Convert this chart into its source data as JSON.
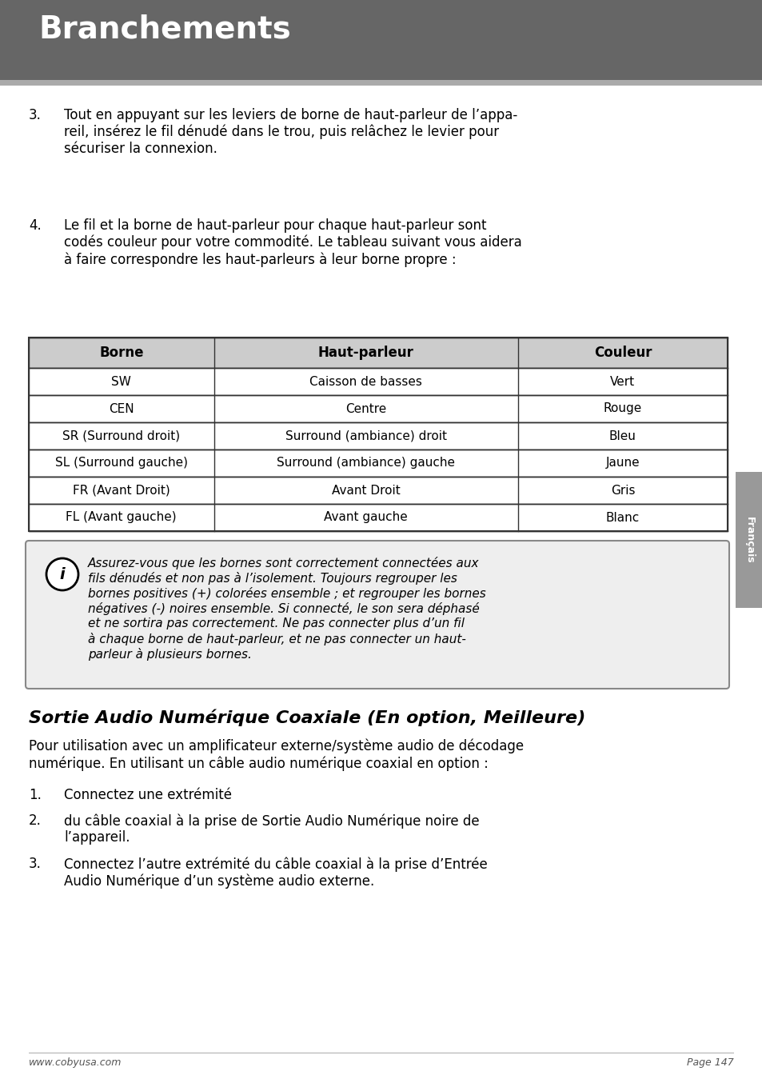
{
  "title": "Branchements",
  "title_bg": "#666666",
  "title_color": "#ffffff",
  "page_bg": "#ffffff",
  "sidebar_color": "#999999",
  "sidebar_text": "Français",
  "footer_left": "www.cobyusa.com",
  "footer_right": "Page 147",
  "para3_number": "3.",
  "para3_text": "Tout en appuyant sur les leviers de borne de haut-parleur de l’appa-\nreil, insérez le fil dénudé dans le trou, puis relâchez le levier pour\nsécuriser la connexion.",
  "para4_number": "4.",
  "para4_text": "Le fil et la borne de haut-parleur pour chaque haut-parleur sont\ncodés couleur pour votre commodité. Le tableau suivant vous aidera\nà faire correspondre les haut-parleurs à leur borne propre :",
  "table_headers": [
    "Borne",
    "Haut-parleur",
    "Couleur"
  ],
  "table_rows": [
    [
      "SW",
      "Caisson de basses",
      "Vert"
    ],
    [
      "CEN",
      "Centre",
      "Rouge"
    ],
    [
      "SR (Surround droit)",
      "Surround (ambiance) droit",
      "Bleu"
    ],
    [
      "SL (Surround gauche)",
      "Surround (ambiance) gauche",
      "Jaune"
    ],
    [
      "FR (Avant Droit)",
      "Avant Droit",
      "Gris"
    ],
    [
      "FL (Avant gauche)",
      "Avant gauche",
      "Blanc"
    ]
  ],
  "table_header_bg": "#cccccc",
  "table_border_color": "#333333",
  "info_box_text_lines": [
    "Assurez-vous que les bornes sont correctement connectées aux",
    "fils dénudés et non pas à l’isolement. Toujours regrouper les",
    "bornes positives (+) colorées ensemble ; et regrouper les bornes",
    "négatives (-) noires ensemble. Si connecté, le son sera déphasé",
    "et ne sortira pas correctement. Ne pas connecter plus d’un fil",
    "à chaque borne de haut-parleur, et ne pas connecter un haut-",
    "parleur à plusieurs bornes."
  ],
  "info_box_bg": "#eeeeee",
  "section_title": "Sortie Audio Numérique Coaxiale (En option, Meilleure)",
  "section_para_lines": [
    "Pour utilisation avec un amplificateur externe/système audio de décodage",
    "numérique. En utilisant un câble audio numérique coaxial en option :"
  ],
  "list_items": [
    [
      "1.",
      "Connectez une extrémité"
    ],
    [
      "2.",
      "du câble coaxial à la prise de Sortie Audio Numérique noire de\nl’appareil."
    ],
    [
      "3.",
      "Connectez l’autre extrémité du câble coaxial à la prise d’Entrée\nAudio Numérique d’un système audio externe."
    ]
  ]
}
